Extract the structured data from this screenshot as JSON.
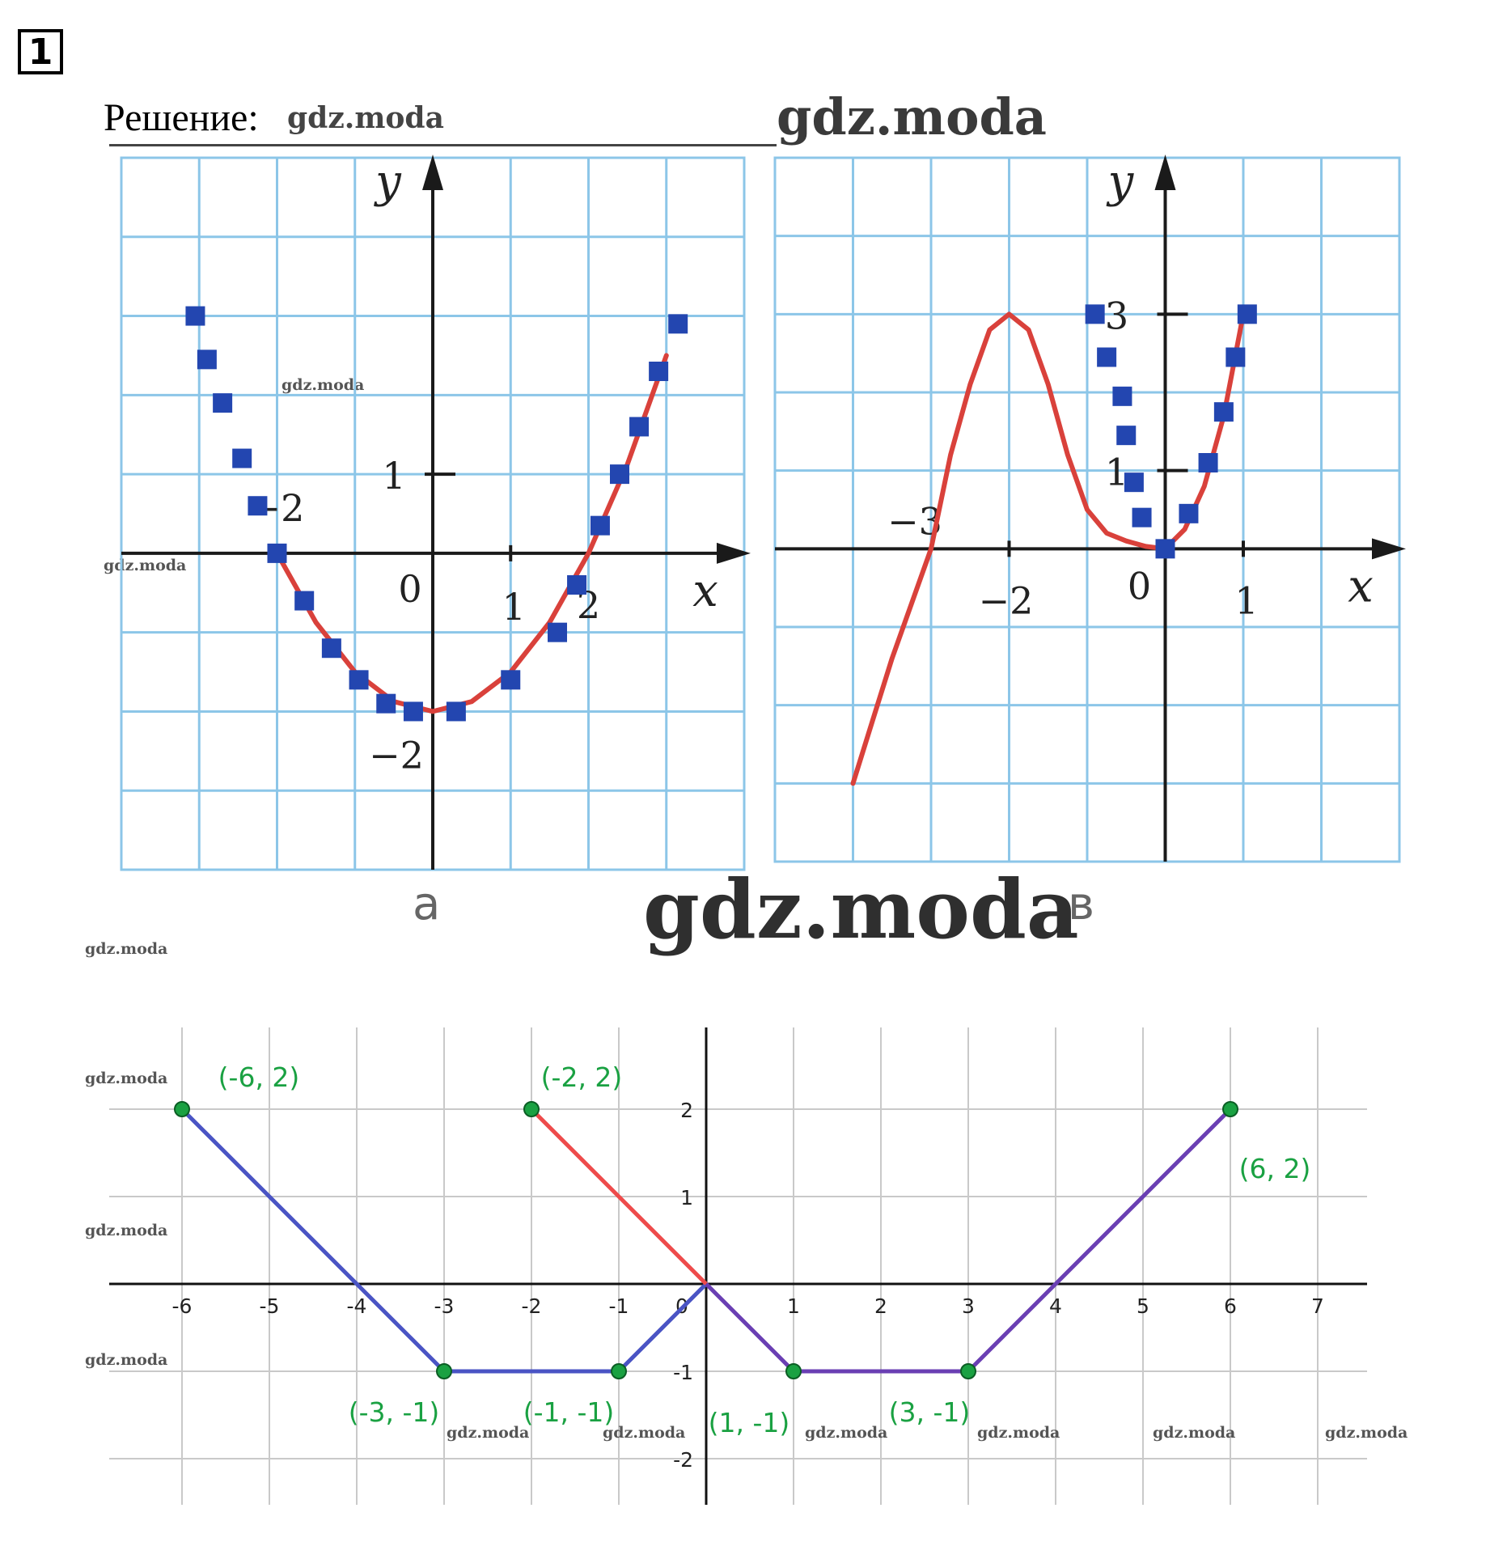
{
  "task_number": "1",
  "solution_label": "Решение:",
  "watermark": "gdz.moda",
  "colors": {
    "grid": "#8cc6e8",
    "curve": "#d9413b",
    "marker": "#2346b0",
    "c_blue": "#4a54c4",
    "c_red": "#ee4b4b",
    "c_purple": "#6a3fb3",
    "c_point": "#1aa142"
  },
  "chart_data": [
    {
      "type": "line",
      "panel_label": "а",
      "xlabel": "x",
      "ylabel": "y",
      "xlim": [
        -4,
        4
      ],
      "ylim": [
        -4,
        5
      ],
      "grid": true,
      "x_ticks": [
        "-2",
        "0",
        "1",
        "2"
      ],
      "y_ticks": [
        "1",
        "-2"
      ],
      "series": [
        {
          "style": "curve",
          "x": [
            -2,
            -1.5,
            -1,
            -0.5,
            0,
            0.5,
            1,
            1.5,
            2,
            2.5,
            3
          ],
          "y": [
            0,
            -0.875,
            -1.5,
            -1.875,
            -2,
            -1.875,
            -1.5,
            -0.875,
            0,
            1.125,
            2.5
          ]
        },
        {
          "style": "markers",
          "x": [
            -2,
            -1.65,
            -1.3,
            -0.95,
            -0.6,
            -0.25,
            0.3,
            1,
            1.6,
            1.85,
            2.15,
            2.4,
            2.65,
            2.9,
            3.15
          ],
          "y": [
            0,
            -0.6,
            -1.2,
            -1.6,
            -1.9,
            -2.0,
            -2.0,
            -1.6,
            -1.0,
            -0.4,
            0.35,
            1.0,
            1.6,
            2.3,
            2.9
          ]
        },
        {
          "style": "markers",
          "x": [
            -3.05,
            -2.9,
            -2.7,
            -2.45,
            -2.25
          ],
          "y": [
            3,
            2.45,
            1.9,
            1.2,
            0.6
          ]
        }
      ]
    },
    {
      "type": "line",
      "panel_label": "в",
      "xlabel": "x",
      "ylabel": "y",
      "xlim": [
        -5,
        3
      ],
      "ylim": [
        -4,
        5
      ],
      "grid": true,
      "x_ticks": [
        "-3",
        "-2",
        "0",
        "1"
      ],
      "y_ticks": [
        "3",
        "1"
      ],
      "series": [
        {
          "style": "curve",
          "x": [
            -4,
            -3.75,
            -3.5,
            -3.25,
            -3,
            -2.75,
            -2.5,
            -2.25,
            -2,
            -1.75,
            -1.5,
            -1.25,
            -1,
            -0.75,
            -0.5,
            -0.25,
            0,
            0.25,
            0.5,
            0.75,
            1
          ],
          "y": [
            -3.0,
            -2.2,
            -1.4,
            -0.7,
            0,
            1.2,
            2.1,
            2.8,
            3.0,
            2.8,
            2.1,
            1.2,
            0.5,
            0.2,
            0.1,
            0.03,
            0,
            0.25,
            0.8,
            1.7,
            3.0
          ]
        },
        {
          "style": "markers",
          "x": [
            -0.9,
            -0.75,
            -0.55,
            -0.5,
            -0.4,
            -0.3,
            0.3,
            0.55,
            0.75,
            0.9,
            1.05
          ],
          "y": [
            3,
            2.45,
            1.95,
            1.45,
            0.85,
            0.4,
            0.45,
            1.1,
            1.75,
            2.45,
            3
          ]
        },
        {
          "style": "markers",
          "x": [
            0
          ],
          "y": [
            0
          ]
        }
      ]
    },
    {
      "type": "line",
      "xlim": [
        -7,
        7.5
      ],
      "ylim": [
        -2.6,
        2.8
      ],
      "grid": true,
      "x_ticks": [
        "-6",
        "-5",
        "-4",
        "-3",
        "-2",
        "-1",
        "0",
        "1",
        "2",
        "3",
        "4",
        "5",
        "6",
        "7"
      ],
      "y_ticks": [
        "2",
        "1",
        "-1",
        "-2"
      ],
      "series": [
        {
          "color": "blue",
          "x": [
            -6,
            -3,
            -1,
            0
          ],
          "y": [
            2,
            -1,
            -1,
            0
          ]
        },
        {
          "color": "red",
          "x": [
            -2,
            0
          ],
          "y": [
            2,
            0
          ]
        },
        {
          "color": "purple",
          "x": [
            0,
            1,
            3,
            6
          ],
          "y": [
            0,
            -1,
            -1,
            2
          ]
        }
      ],
      "points": [
        {
          "x": -6,
          "y": 2,
          "label": "(-6, 2)"
        },
        {
          "x": -2,
          "y": 2,
          "label": "(-2, 2)"
        },
        {
          "x": 6,
          "y": 2,
          "label": "(6, 2)"
        },
        {
          "x": -3,
          "y": -1,
          "label": "(-3, -1)"
        },
        {
          "x": -1,
          "y": -1,
          "label": "(-1, -1)"
        },
        {
          "x": 1,
          "y": -1,
          "label": "(1, -1)"
        },
        {
          "x": 3,
          "y": -1,
          "label": "(3, -1)"
        }
      ]
    }
  ]
}
